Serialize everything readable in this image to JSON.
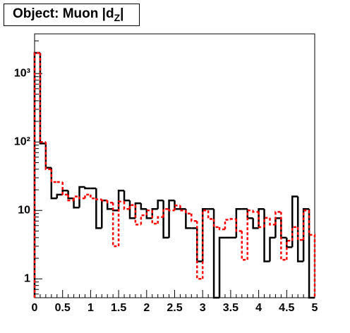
{
  "chart_data": {
    "type": "histogram",
    "title": [
      "Object: Muon |d",
      "Z",
      "|"
    ],
    "bins": [
      0,
      0.1,
      0.2,
      0.3,
      0.4,
      0.5,
      0.6,
      0.7,
      0.8,
      0.9,
      1,
      1.1,
      1.2,
      1.3,
      1.4,
      1.5,
      1.6,
      1.7,
      1.8,
      1.9,
      2,
      2.1,
      2.2,
      2.3,
      2.4,
      2.5,
      2.6,
      2.7,
      2.8,
      2.9,
      3,
      3.1,
      3.2,
      3.3,
      3.4,
      3.5,
      3.6,
      3.7,
      3.8,
      3.9,
      4,
      4.1,
      4.2,
      4.3,
      4.4,
      4.5,
      4.6,
      4.7,
      4.8,
      4.9,
      5
    ],
    "series": [
      {
        "color": "#000000",
        "dash": false,
        "values": [
          2000,
          95,
          42,
          15,
          17,
          19.5,
          15,
          11,
          22,
          21,
          21,
          5.5,
          14,
          10.5,
          10,
          19.5,
          14,
          7.7,
          12.7,
          10.5,
          7.7,
          10.5,
          14,
          4,
          14,
          10.5,
          10.5,
          5.5,
          5.5,
          1.8,
          10.5,
          10.5,
          0,
          4,
          4,
          4,
          10.5,
          10.5,
          7.7,
          5.5,
          10.5,
          1.8,
          4,
          7.7,
          4,
          2.9,
          16,
          1.8,
          10.5,
          0
        ]
      },
      {
        "color": "#ff0000",
        "dash": true,
        "values": [
          2000,
          100,
          40,
          26,
          26,
          17,
          14,
          16,
          15,
          17,
          15,
          14.5,
          14,
          13,
          3,
          13.5,
          10.5,
          12,
          6.2,
          8.5,
          10,
          6.4,
          8,
          10.5,
          10,
          11.8,
          10,
          9,
          7,
          1,
          10,
          7.5,
          5.7,
          5.3,
          7.3,
          7.5,
          5,
          1.9,
          10,
          9.5,
          5.7,
          7.8,
          6.2,
          9.5,
          1.9,
          3.6,
          5.7,
          3.7,
          10,
          4.4
        ]
      }
    ],
    "xlim": [
      0,
      5
    ],
    "xticks": [
      0,
      0.5,
      1,
      1.5,
      2,
      2.5,
      3,
      3.5,
      4,
      4.5,
      5
    ],
    "ylim": [
      0.53,
      3800
    ],
    "yticks": [
      1,
      10,
      {
        "value": 100,
        "label": "10²"
      },
      {
        "value": 1000,
        "label": "10³"
      }
    ],
    "log_y": true
  }
}
